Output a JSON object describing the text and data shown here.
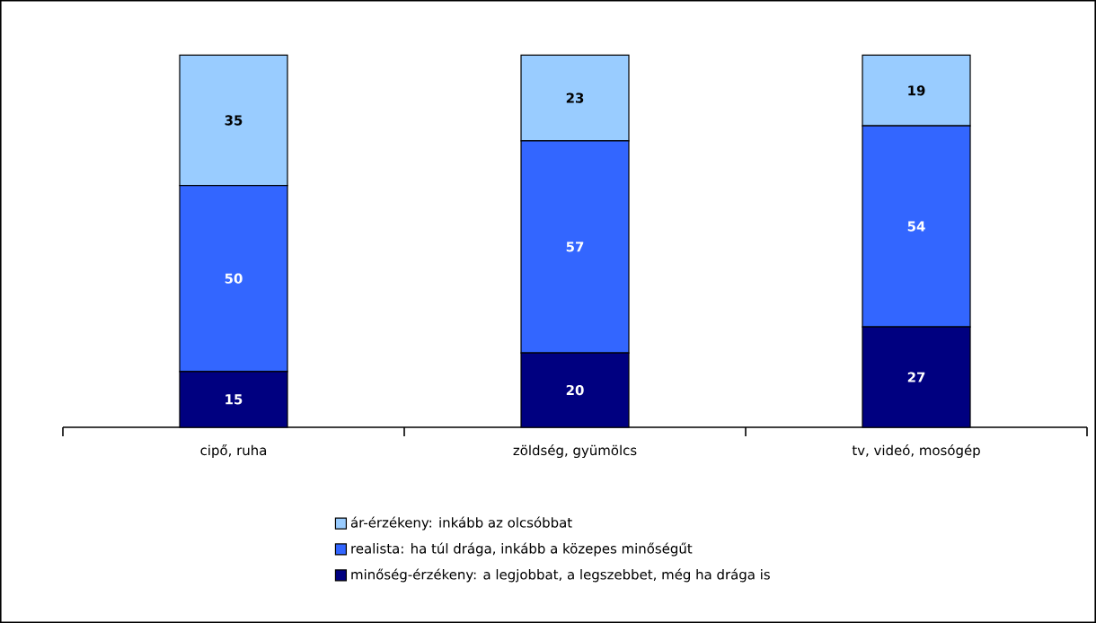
{
  "chart_data": {
    "type": "bar",
    "stacked": true,
    "categories": [
      "cipő, ruha",
      "zöldség, gyümölcs",
      "tv, videó, mosógép"
    ],
    "series": [
      {
        "name": "minőség-érzékeny: a legjobbat, a legszebbet, még ha drága is",
        "color": "#000080",
        "values": [
          15,
          20,
          27
        ]
      },
      {
        "name": "realista: ha túl drága, inkább a közepes minőségűt",
        "color": "#3366ff",
        "values": [
          50,
          57,
          54
        ]
      },
      {
        "name": "ár-érzékeny: inkább az olcsóbbat",
        "color": "#99ccff",
        "values": [
          35,
          23,
          19
        ]
      }
    ],
    "data_labels": true,
    "legend": "bottom"
  }
}
